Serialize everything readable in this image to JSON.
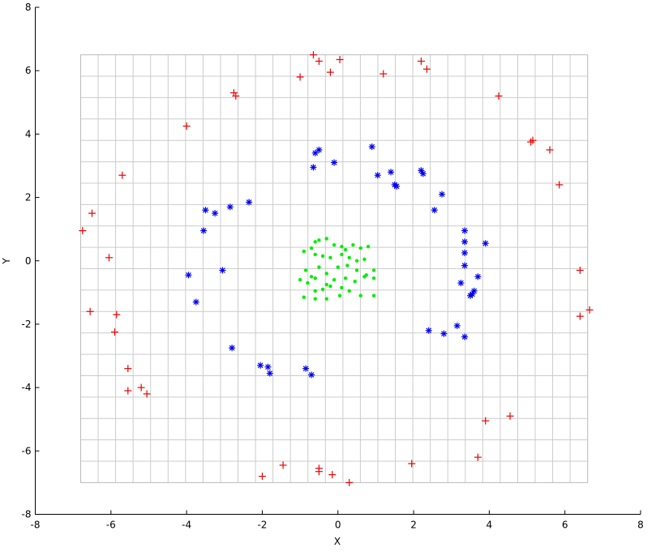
{
  "chart_data": {
    "type": "scatter",
    "xlabel": "X",
    "ylabel": "Y",
    "xlim": [
      -8,
      8
    ],
    "ylim": [
      -8,
      8
    ],
    "x_ticks": [
      -8,
      -6,
      -4,
      -2,
      0,
      2,
      4,
      6,
      8
    ],
    "y_ticks": [
      -8,
      -6,
      -4,
      -2,
      0,
      2,
      4,
      6,
      8
    ],
    "grid": {
      "on": true,
      "x_range": [
        -6.8,
        6.6
      ],
      "y_range": [
        -7.0,
        6.5
      ],
      "color": "#cccccc",
      "x_lines": 29,
      "y_lines": 20
    },
    "series": [
      {
        "marker": "dot",
        "color": "#00ee00",
        "points": [
          [
            -0.6,
            0.6
          ],
          [
            -0.5,
            0.65
          ],
          [
            -0.3,
            0.7
          ],
          [
            -0.1,
            0.5
          ],
          [
            0.1,
            0.45
          ],
          [
            0.2,
            0.35
          ],
          [
            0.4,
            0.5
          ],
          [
            0.6,
            0.4
          ],
          [
            0.8,
            0.45
          ],
          [
            -0.9,
            0.3
          ],
          [
            -0.7,
            0.4
          ],
          [
            -0.6,
            0.2
          ],
          [
            -0.4,
            0.15
          ],
          [
            -0.2,
            0.1
          ],
          [
            0.1,
            0.2
          ],
          [
            0.3,
            0.1
          ],
          [
            0.5,
            0.0
          ],
          [
            0.7,
            0.05
          ],
          [
            -0.85,
            -0.3
          ],
          [
            -0.7,
            -0.5
          ],
          [
            -0.5,
            -0.2
          ],
          [
            -0.3,
            -0.4
          ],
          [
            0.0,
            -0.2
          ],
          [
            0.25,
            -0.15
          ],
          [
            0.5,
            -0.3
          ],
          [
            0.75,
            -0.45
          ],
          [
            0.95,
            -0.3
          ],
          [
            -1.0,
            -0.6
          ],
          [
            -0.8,
            -0.7
          ],
          [
            -0.6,
            -0.55
          ],
          [
            -0.3,
            -0.75
          ],
          [
            -0.1,
            -0.6
          ],
          [
            0.2,
            -0.55
          ],
          [
            0.45,
            -0.65
          ],
          [
            0.7,
            -0.5
          ],
          [
            0.95,
            -0.55
          ],
          [
            -0.6,
            -0.95
          ],
          [
            -0.4,
            -0.9
          ],
          [
            -0.2,
            -0.8
          ],
          [
            0.1,
            -0.85
          ],
          [
            0.3,
            -0.95
          ],
          [
            -0.9,
            -1.15
          ],
          [
            -0.6,
            -1.2
          ],
          [
            -0.3,
            -1.2
          ],
          [
            0.05,
            -1.1
          ],
          [
            0.6,
            -1.1
          ],
          [
            0.95,
            -1.1
          ]
        ]
      },
      {
        "marker": "asterisk",
        "color": "#0000ee",
        "points": [
          [
            -0.6,
            3.4
          ],
          [
            -0.5,
            3.5
          ],
          [
            -0.65,
            2.95
          ],
          [
            -0.1,
            3.1
          ],
          [
            0.9,
            3.6
          ],
          [
            1.05,
            2.7
          ],
          [
            1.4,
            2.8
          ],
          [
            1.5,
            2.4
          ],
          [
            1.55,
            2.35
          ],
          [
            2.2,
            2.85
          ],
          [
            2.25,
            2.75
          ],
          [
            2.75,
            2.1
          ],
          [
            2.55,
            1.6
          ],
          [
            3.35,
            0.95
          ],
          [
            3.35,
            0.6
          ],
          [
            3.35,
            0.25
          ],
          [
            3.35,
            -0.15
          ],
          [
            3.9,
            0.55
          ],
          [
            3.7,
            -0.5
          ],
          [
            3.25,
            -0.7
          ],
          [
            3.6,
            -0.95
          ],
          [
            3.5,
            -1.1
          ],
          [
            3.55,
            -1.05
          ],
          [
            3.15,
            -2.05
          ],
          [
            3.35,
            -2.4
          ],
          [
            2.8,
            -2.3
          ],
          [
            2.4,
            -2.2
          ],
          [
            -3.5,
            1.6
          ],
          [
            -3.25,
            1.5
          ],
          [
            -3.55,
            0.95
          ],
          [
            -2.85,
            1.7
          ],
          [
            -2.35,
            1.85
          ],
          [
            -3.05,
            -0.3
          ],
          [
            -3.95,
            -0.45
          ],
          [
            -3.75,
            -1.3
          ],
          [
            -2.8,
            -2.75
          ],
          [
            -2.05,
            -3.3
          ],
          [
            -1.85,
            -3.35
          ],
          [
            -1.8,
            -3.55
          ],
          [
            -0.85,
            -3.4
          ],
          [
            -0.7,
            -3.6
          ]
        ]
      },
      {
        "marker": "plus",
        "color": "#ee0000",
        "points": [
          [
            -0.65,
            6.5
          ],
          [
            -0.5,
            6.3
          ],
          [
            0.05,
            6.35
          ],
          [
            -1.0,
            5.8
          ],
          [
            -0.2,
            5.95
          ],
          [
            1.2,
            5.9
          ],
          [
            2.2,
            6.3
          ],
          [
            2.35,
            6.05
          ],
          [
            -2.75,
            5.3
          ],
          [
            -2.7,
            5.2
          ],
          [
            4.25,
            5.2
          ],
          [
            -4.0,
            4.25
          ],
          [
            5.1,
            3.75
          ],
          [
            5.15,
            3.8
          ],
          [
            5.6,
            3.5
          ],
          [
            5.85,
            2.4
          ],
          [
            -5.7,
            2.7
          ],
          [
            -6.5,
            1.5
          ],
          [
            -6.75,
            0.95
          ],
          [
            -6.05,
            0.1
          ],
          [
            6.4,
            -0.3
          ],
          [
            6.65,
            -1.55
          ],
          [
            6.4,
            -1.75
          ],
          [
            -6.55,
            -1.6
          ],
          [
            -5.85,
            -1.7
          ],
          [
            -5.9,
            -2.25
          ],
          [
            -5.55,
            -3.4
          ],
          [
            -5.55,
            -4.1
          ],
          [
            -5.2,
            -4.0
          ],
          [
            -5.05,
            -4.2
          ],
          [
            3.9,
            -5.05
          ],
          [
            4.55,
            -4.9
          ],
          [
            3.7,
            -6.2
          ],
          [
            1.95,
            -6.4
          ],
          [
            -1.45,
            -6.45
          ],
          [
            -2.0,
            -6.8
          ],
          [
            -0.5,
            -6.55
          ],
          [
            -0.5,
            -6.65
          ],
          [
            -0.15,
            -6.75
          ],
          [
            0.3,
            -7.0
          ]
        ]
      }
    ]
  }
}
